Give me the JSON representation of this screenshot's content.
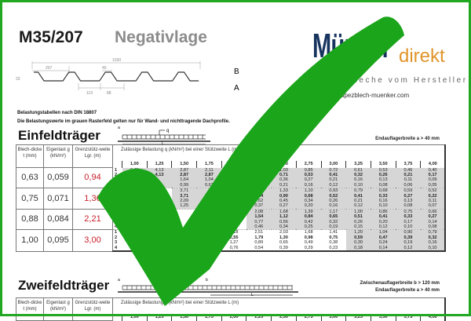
{
  "header": {
    "title": "M35/207",
    "subtitle": "Negativlage",
    "label_b": "B",
    "label_a": "A",
    "profile_dims": {
      "total": "1030",
      "pitch": "207",
      "top": "40",
      "bottom": "119",
      "web": "88",
      "height": "33"
    }
  },
  "logo": {
    "name_main": "Münker",
    "name_accent": "direkt",
    "tagline": "Trapezbleche vom Hersteller",
    "url": "www.trapezblech-muenker.com",
    "colors": {
      "main": "#17345f",
      "accent": "#e0952b"
    }
  },
  "notes": [
    "Belastungstabellen nach DIN 18807",
    "Die Belastungswerte im grauen Rasterfeld gelten nur für Wand- und nichttragende Dachprofile."
  ],
  "overlay": {
    "icon": "checkmark-icon",
    "color": "#1ba51b"
  },
  "einfeld": {
    "title": "Einfeldträger",
    "right_notes": [
      "Endauflagerbreite a > 40 mm"
    ],
    "diagram_labels": {
      "a": "a",
      "q": "q",
      "l": "L"
    },
    "headers": {
      "thickness": "Blech-dicke t (mm)",
      "selfweight": "Eigenlast g (kN/m²)",
      "limit": "Grenzstütz-weite Lgr. (m)",
      "load": "Zulässige Belastung q (kN/m²) bei einer Stützweite L (m)"
    },
    "spans": [
      "1,00",
      "1,25",
      "1,50",
      "1,75",
      "2,00",
      "2,25",
      "2,50",
      "2,75",
      "3,00",
      "3,25",
      "3,50",
      "3,75",
      "4,00"
    ],
    "groups": [
      {
        "t": "0,63",
        "g": "0,059",
        "lgr": "0,94",
        "gray_from": 0,
        "rows": [
          [
            "6,45",
            "4,13",
            "2,87",
            "2,11",
            "",
            "",
            "1,03",
            "0,85",
            "0,72",
            "0,61",
            "0,53",
            "0,46",
            "0,40"
          ],
          [
            "",
            "4,13",
            "2,87",
            "2,87",
            "",
            "",
            "0,71",
            "0,53",
            "0,41",
            "0,32",
            "0,26",
            "0,21",
            "0,17"
          ],
          [
            "",
            "",
            "1,64",
            "1,04",
            "",
            "",
            "0,36",
            "0,27",
            "0,21",
            "0,16",
            "0,13",
            "0,11",
            "0,09"
          ],
          [
            "",
            "",
            "0,99",
            "0,62",
            "",
            "",
            "0,21",
            "0,16",
            "0,12",
            "0,10",
            "0,08",
            "0,06",
            "0,05"
          ]
        ]
      },
      {
        "t": "0,75",
        "g": "0,071",
        "lgr": "1,36",
        "gray_from": 2,
        "rows": [
          [
            "",
            "",
            "3,71",
            "",
            "",
            "1,65",
            "1,33",
            "1,10",
            "0,93",
            "0,79",
            "0,68",
            "0,59",
            "0,52"
          ],
          [
            "",
            "",
            "3,71",
            "",
            "",
            "1,24",
            "0,90",
            "0,68",
            "0,52",
            "0,41",
            "0,33",
            "0,27",
            "0,22"
          ],
          [
            "",
            "",
            "2,09",
            "",
            "",
            "0,62",
            "0,45",
            "0,34",
            "0,26",
            "0,21",
            "0,16",
            "0,13",
            "0,11"
          ],
          [
            "",
            "",
            "1,25",
            "",
            "",
            "0,37",
            "0,27",
            "0,20",
            "0,16",
            "0,12",
            "0,10",
            "0,08",
            "0,07"
          ]
        ]
      },
      {
        "t": "0,88",
        "g": "0,084",
        "lgr": "2,21",
        "gray_from": 5,
        "rows": [
          [
            "",
            "",
            "",
            "",
            "",
            "2,08",
            "1,68",
            "1,39",
            "1,17",
            "1,00",
            "0,86",
            "0,75",
            "0,66"
          ],
          [
            "",
            "",
            "",
            "",
            "",
            "1,54",
            "1,12",
            "0,84",
            "0,65",
            "0,51",
            "0,41",
            "0,33",
            "0,27"
          ],
          [
            "",
            "",
            "",
            "",
            "",
            "0,77",
            "0,56",
            "0,42",
            "0,32",
            "0,26",
            "0,20",
            "0,17",
            "0,14"
          ],
          [
            "5,25",
            "",
            "",
            "",
            "0,66",
            "0,46",
            "0,34",
            "0,25",
            "0,19",
            "0,15",
            "0,12",
            "0,10",
            "0,08"
          ]
        ]
      },
      {
        "t": "1,00",
        "g": "0,095",
        "lgr": "3,00",
        "gray_from": 9,
        "rows": [
          [
            "12,70",
            "",
            "",
            "",
            "3,18",
            "2,51",
            "2,03",
            "1,68",
            "1,41",
            "1,20",
            "1,04",
            "0,90",
            "0,79"
          ],
          [
            "12,70",
            "",
            "",
            "",
            "2,55",
            "1,79",
            "1,30",
            "0,98",
            "0,75",
            "0,59",
            "0,47",
            "0,39",
            "0,32"
          ],
          [
            "10,18",
            "",
            "",
            "",
            "1,27",
            "0,89",
            "0,65",
            "0,49",
            "0,38",
            "0,30",
            "0,24",
            "0,19",
            "0,16"
          ],
          [
            "6,11",
            "",
            "",
            "",
            "0,76",
            "0,54",
            "0,39",
            "0,29",
            "0,23",
            "0,18",
            "0,14",
            "0,12",
            "0,10"
          ]
        ]
      }
    ]
  },
  "zweifeld": {
    "title": "Zweifeldträger",
    "right_notes": [
      "Zwischenauflagerbreite b > 120 mm",
      "Endauflagerbreite a > 40 mm"
    ],
    "diagram_labels": {
      "a": "a",
      "b": "b",
      "l": "L"
    },
    "headers": {
      "thickness": "Blech-dicke t (mm)",
      "selfweight": "Eigenlast g (kN/m²)",
      "limit": "Grenzstütz-weite Lgr. (m)",
      "load": "Zulässige Belastung q (kN/m²) bei einer Stützweite L (m)"
    },
    "spans": [
      "1,00",
      "1,25",
      "1,50",
      "1,75",
      "2,00",
      "2,25",
      "2,50",
      "2,75",
      "3,00",
      "3,25",
      "3,50",
      "3,75",
      "4,00"
    ]
  }
}
